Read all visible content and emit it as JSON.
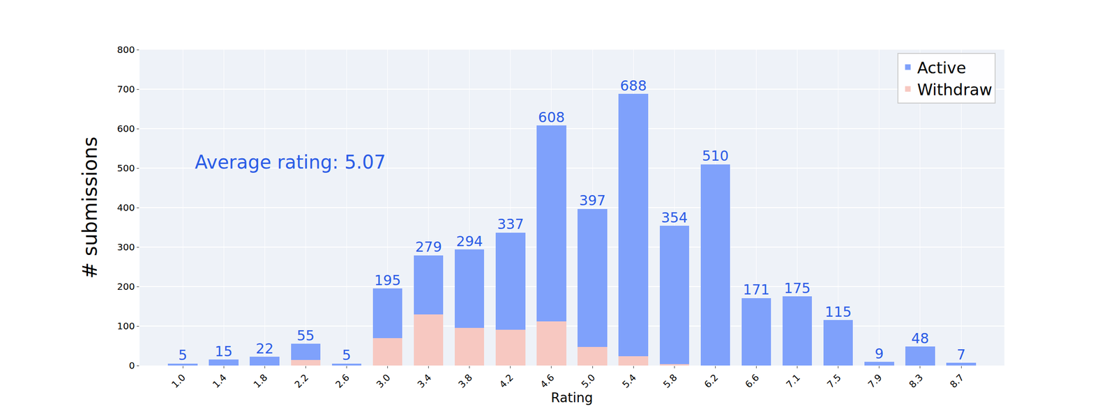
{
  "chart_data": {
    "type": "bar",
    "stacked": true,
    "x_label": "Rating",
    "y_label": "# submissions",
    "annotation": "Average rating: 5.07",
    "categories": [
      "1.0",
      "1.4",
      "1.8",
      "2.2",
      "2.6",
      "3.0",
      "3.4",
      "3.8",
      "4.2",
      "4.6",
      "5.0",
      "5.4",
      "5.8",
      "6.2",
      "6.6",
      "7.1",
      "7.5",
      "7.9",
      "8.3",
      "8.7"
    ],
    "series": [
      {
        "name": "Withdraw",
        "color": "#f7c8c1",
        "values": [
          0,
          0,
          0,
          14,
          0,
          69,
          129,
          95,
          91,
          112,
          47,
          24,
          4,
          0,
          0,
          0,
          0,
          0,
          0,
          0
        ]
      },
      {
        "name": "Active",
        "color": "#7fa1fb",
        "values": [
          5,
          15,
          22,
          41,
          5,
          126,
          150,
          199,
          246,
          496,
          350,
          664,
          350,
          510,
          171,
          175,
          115,
          9,
          48,
          7
        ]
      }
    ],
    "totals": [
      5,
      15,
      22,
      55,
      5,
      195,
      279,
      294,
      337,
      608,
      397,
      688,
      354,
      510,
      171,
      175,
      115,
      9,
      48,
      7
    ],
    "data_labels": true,
    "ylim": [
      0,
      800
    ],
    "yticks": [
      0,
      100,
      200,
      300,
      400,
      500,
      600,
      700,
      800
    ],
    "grid": true,
    "legend": "upper right"
  }
}
